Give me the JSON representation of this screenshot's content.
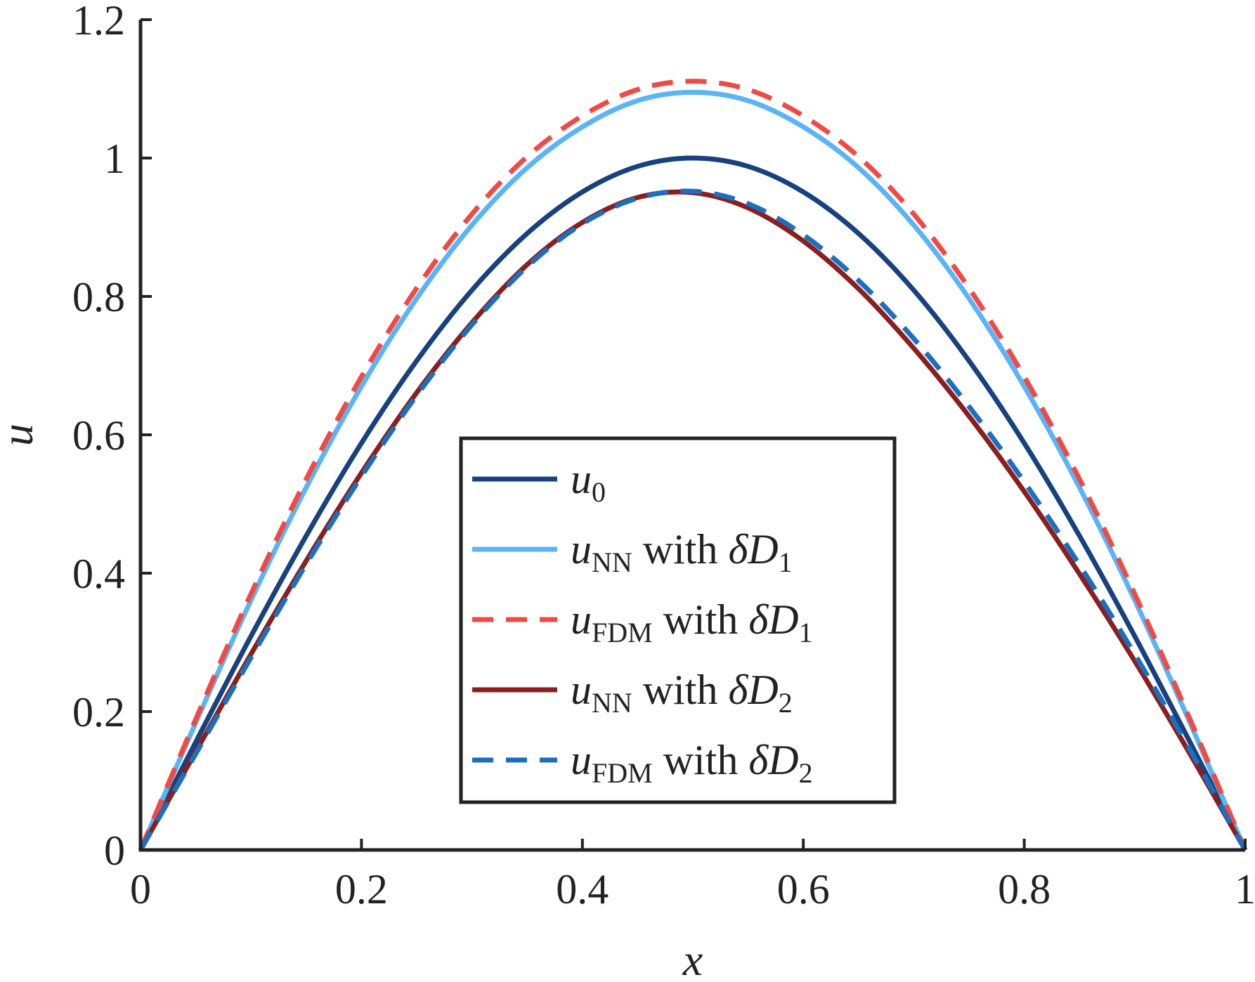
{
  "chart_data": {
    "type": "line",
    "title": "",
    "xlabel": "x",
    "ylabel": "u",
    "xlim": [
      0,
      1
    ],
    "ylim": [
      0,
      1.2
    ],
    "xticks": [
      0,
      0.2,
      0.4,
      0.6,
      0.8,
      1
    ],
    "xtick_labels": [
      "0",
      "0.2",
      "0.4",
      "0.6",
      "0.8",
      "1"
    ],
    "yticks": [
      0,
      0.2,
      0.4,
      0.6,
      0.8,
      1,
      1.2
    ],
    "ytick_labels": [
      "0",
      "0.2",
      "0.4",
      "0.6",
      "0.8",
      "1",
      "1.2"
    ],
    "grid": false,
    "legend_position": "center-bottom",
    "x": [
      0,
      0.05,
      0.1,
      0.15,
      0.2,
      0.25,
      0.3,
      0.35,
      0.4,
      0.45,
      0.5,
      0.55,
      0.6,
      0.65,
      0.7,
      0.75,
      0.8,
      0.85,
      0.9,
      0.95,
      1
    ],
    "series": [
      {
        "name": "u0",
        "legend": {
          "var": "u",
          "sub": "0",
          "text": ""
        },
        "color": "#17427f",
        "style": "solid",
        "values": [
          0,
          0.156,
          0.309,
          0.454,
          0.588,
          0.707,
          0.809,
          0.891,
          0.951,
          0.988,
          1.0,
          0.988,
          0.951,
          0.891,
          0.809,
          0.707,
          0.588,
          0.454,
          0.309,
          0.156,
          0
        ]
      },
      {
        "name": "uNN with δD1",
        "legend": {
          "var": "u",
          "sub": "NN",
          "text": " with ",
          "delta": "δ",
          "dvar": "D",
          "dsub": "1"
        },
        "color": "#5ab4f5",
        "style": "solid",
        "values": [
          0,
          0.184,
          0.361,
          0.524,
          0.67,
          0.797,
          0.903,
          0.986,
          1.045,
          1.083,
          1.095,
          1.083,
          1.045,
          0.986,
          0.903,
          0.797,
          0.67,
          0.524,
          0.361,
          0.184,
          0
        ]
      },
      {
        "name": "uFDM with δD1",
        "legend": {
          "var": "u",
          "sub": "FDM",
          "text": " with ",
          "delta": "δ",
          "dvar": "D",
          "dsub": "1"
        },
        "color": "#f04a45",
        "style": "dashed",
        "values": [
          0,
          0.189,
          0.37,
          0.536,
          0.684,
          0.812,
          0.919,
          1.002,
          1.061,
          1.099,
          1.111,
          1.099,
          1.061,
          1.002,
          0.919,
          0.812,
          0.684,
          0.536,
          0.37,
          0.189,
          0
        ]
      },
      {
        "name": "uNN with δD2",
        "legend": {
          "var": "u",
          "sub": "NN",
          "text": " with ",
          "delta": "δ",
          "dvar": "D",
          "dsub": "2"
        },
        "color": "#8a1f1f",
        "style": "solid",
        "values": [
          0,
          0.142,
          0.283,
          0.418,
          0.545,
          0.661,
          0.762,
          0.846,
          0.907,
          0.943,
          0.95,
          0.928,
          0.88,
          0.811,
          0.725,
          0.627,
          0.518,
          0.399,
          0.273,
          0.139,
          0
        ]
      },
      {
        "name": "uFDM with δD2",
        "legend": {
          "var": "u",
          "sub": "FDM",
          "text": " with ",
          "delta": "δ",
          "dvar": "D",
          "dsub": "2"
        },
        "color": "#1c6fbf",
        "style": "dashed",
        "values": [
          0,
          0.139,
          0.278,
          0.413,
          0.54,
          0.657,
          0.759,
          0.843,
          0.905,
          0.942,
          0.952,
          0.934,
          0.889,
          0.823,
          0.739,
          0.641,
          0.532,
          0.412,
          0.283,
          0.145,
          0
        ]
      }
    ]
  }
}
